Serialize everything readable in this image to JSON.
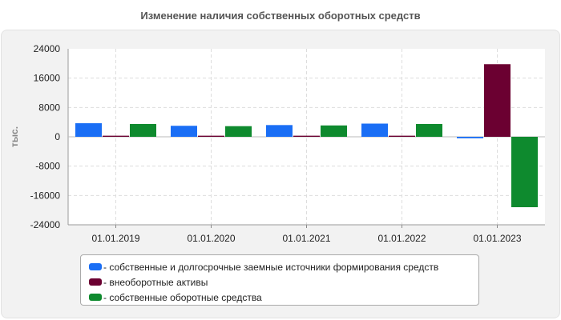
{
  "title": "Изменение наличия собственных оборотных средств",
  "colors": {
    "series1": "#1a6ef5",
    "series2": "#6b0031",
    "series3": "#0e8a2e",
    "grid": "#dddddd",
    "plot_bg": "#ffffff"
  },
  "chart_data": {
    "type": "bar",
    "title": "Изменение наличия собственных оборотных средств",
    "xlabel": "",
    "ylabel": "тыс.",
    "ylim": [
      -24000,
      24000
    ],
    "yticks": [
      24000,
      16000,
      8000,
      0,
      -8000,
      -16000,
      -24000
    ],
    "grid": true,
    "legend_position": "bottom",
    "categories": [
      "01.01.2019",
      "01.01.2020",
      "01.01.2021",
      "01.01.2022",
      "01.01.2023"
    ],
    "series": [
      {
        "name": "- собственные и долгосрочные заемные источники формирования средств",
        "values": [
          3700,
          3000,
          3200,
          3600,
          -400
        ]
      },
      {
        "name": "- внеоборотные активы",
        "values": [
          300,
          300,
          300,
          300,
          19800
        ]
      },
      {
        "name": "- собственные оборотные средства",
        "values": [
          3500,
          2900,
          3100,
          3500,
          -19200
        ]
      }
    ]
  }
}
